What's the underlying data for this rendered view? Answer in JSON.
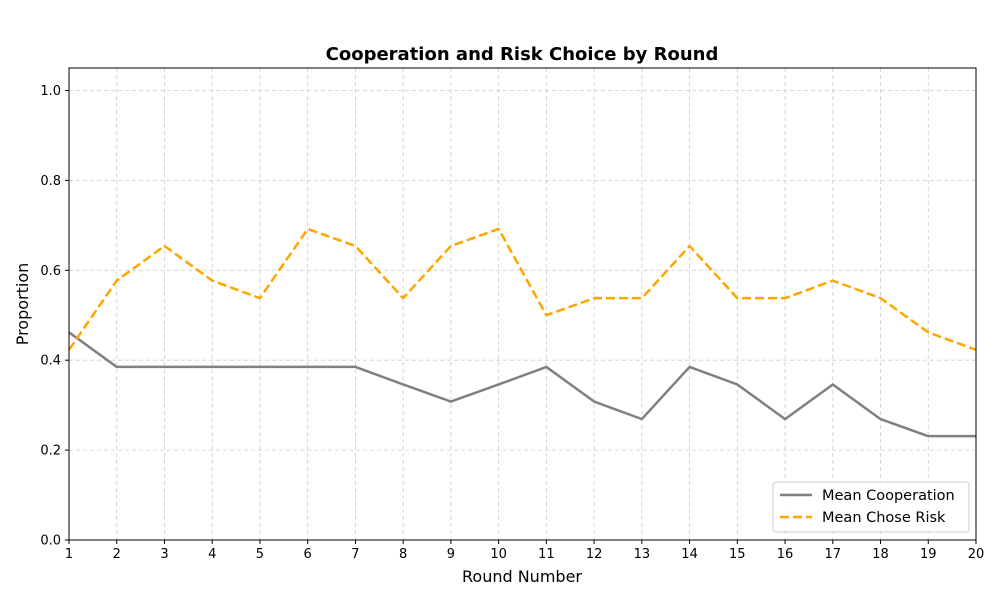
{
  "chart_data": {
    "type": "line",
    "title": "Cooperation and Risk Choice by Round",
    "xlabel": "Round Number",
    "ylabel": "Proportion",
    "x": [
      1,
      2,
      3,
      4,
      5,
      6,
      7,
      8,
      9,
      10,
      11,
      12,
      13,
      14,
      15,
      16,
      17,
      18,
      19,
      20
    ],
    "xlim": [
      1,
      20
    ],
    "ylim": [
      0,
      1.05
    ],
    "yticks": [
      0.0,
      0.2,
      0.4,
      0.6,
      0.8,
      1.0
    ],
    "ytick_labels": [
      "0.0",
      "0.2",
      "0.4",
      "0.6",
      "0.8",
      "1.0"
    ],
    "grid": true,
    "legend_position": "bottom-right",
    "series": [
      {
        "name": "Mean Cooperation",
        "color": "#808080",
        "style": "solid",
        "values": [
          0.462,
          0.385,
          0.385,
          0.385,
          0.385,
          0.385,
          0.385,
          0.346,
          0.308,
          0.346,
          0.385,
          0.308,
          0.269,
          0.385,
          0.346,
          0.269,
          0.346,
          0.269,
          0.231,
          0.231
        ]
      },
      {
        "name": "Mean Chose Risk",
        "color": "#FFA500",
        "style": "dashed",
        "values": [
          0.423,
          0.577,
          0.654,
          0.577,
          0.538,
          0.692,
          0.654,
          0.538,
          0.654,
          0.692,
          0.5,
          0.538,
          0.538,
          0.654,
          0.538,
          0.538,
          0.577,
          0.538,
          0.462,
          0.423
        ]
      }
    ]
  }
}
